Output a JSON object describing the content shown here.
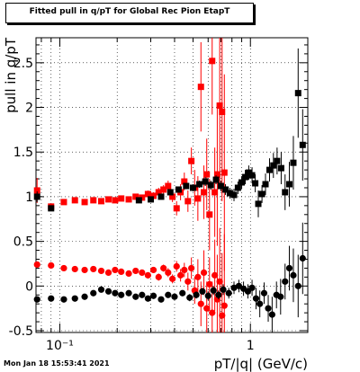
{
  "chart_data": {
    "type": "scatter",
    "title": "Fitted pull in q/pT for Global Rec Pion EtapT",
    "xlabel": "pT/|q| (GeV/c)",
    "ylabel": "pull in q/pT",
    "x_scale": "log",
    "xlim": [
      0.075,
      2.0
    ],
    "ylim": [
      -0.52,
      2.78
    ],
    "x_tick_labels": [
      {
        "value": 0.1,
        "label": "10⁻¹"
      },
      {
        "value": 1,
        "label": "1"
      }
    ],
    "y_ticks": [
      -0.5,
      0,
      0.5,
      1,
      1.5,
      2,
      2.5
    ],
    "series": [
      {
        "color": "#ff0000",
        "marker": "square",
        "points": [
          {
            "x": 0.076,
            "y": 1.07,
            "err": 0.14
          },
          {
            "x": 0.09,
            "y": 0.89,
            "err": 0.02
          },
          {
            "x": 0.105,
            "y": 0.94,
            "err": 0.02
          },
          {
            "x": 0.12,
            "y": 0.96,
            "err": 0.02
          },
          {
            "x": 0.135,
            "y": 0.94,
            "err": 0.02
          },
          {
            "x": 0.15,
            "y": 0.96,
            "err": 0.02
          },
          {
            "x": 0.165,
            "y": 0.95,
            "err": 0.02
          },
          {
            "x": 0.18,
            "y": 0.97,
            "err": 0.02
          },
          {
            "x": 0.195,
            "y": 0.96,
            "err": 0.02
          },
          {
            "x": 0.21,
            "y": 0.98,
            "err": 0.02
          },
          {
            "x": 0.23,
            "y": 0.97,
            "err": 0.03
          },
          {
            "x": 0.25,
            "y": 1.0,
            "err": 0.03
          },
          {
            "x": 0.27,
            "y": 0.99,
            "err": 0.03
          },
          {
            "x": 0.29,
            "y": 1.03,
            "err": 0.04
          },
          {
            "x": 0.31,
            "y": 1.01,
            "err": 0.04
          },
          {
            "x": 0.33,
            "y": 1.05,
            "err": 0.05
          },
          {
            "x": 0.35,
            "y": 1.08,
            "err": 0.05
          },
          {
            "x": 0.37,
            "y": 1.12,
            "err": 0.06
          },
          {
            "x": 0.39,
            "y": 1.0,
            "err": 0.06
          },
          {
            "x": 0.41,
            "y": 0.87,
            "err": 0.08
          },
          {
            "x": 0.43,
            "y": 1.05,
            "err": 0.09
          },
          {
            "x": 0.45,
            "y": 1.17,
            "err": 0.1
          },
          {
            "x": 0.47,
            "y": 0.95,
            "err": 0.12
          },
          {
            "x": 0.49,
            "y": 1.4,
            "err": 0.15
          },
          {
            "x": 0.51,
            "y": 1.1,
            "err": 0.2
          },
          {
            "x": 0.53,
            "y": 0.98,
            "err": 0.25
          },
          {
            "x": 0.55,
            "y": 2.23,
            "err": 0.5
          },
          {
            "x": 0.57,
            "y": 1.05,
            "err": 0.3
          },
          {
            "x": 0.59,
            "y": 1.25,
            "err": 0.4
          },
          {
            "x": 0.61,
            "y": 0.8,
            "err": 0.4
          },
          {
            "x": 0.63,
            "y": 2.52,
            "err": 0.6
          },
          {
            "x": 0.65,
            "y": 1.05,
            "err": 0.5
          },
          {
            "x": 0.67,
            "y": 1.25,
            "err": 0.8
          },
          {
            "x": 0.69,
            "y": 2.02,
            "err": 0.9
          },
          {
            "x": 0.71,
            "y": 1.95,
            "err": 1.0
          },
          {
            "x": 0.73,
            "y": 1.27,
            "err": 1.1
          }
        ]
      },
      {
        "color": "#000000",
        "marker": "square",
        "points": [
          {
            "x": 0.076,
            "y": 1.0,
            "err": 0.06
          },
          {
            "x": 0.09,
            "y": 0.87,
            "err": 0.02
          },
          {
            "x": 0.26,
            "y": 0.96,
            "err": 0.02
          },
          {
            "x": 0.3,
            "y": 0.97,
            "err": 0.02
          },
          {
            "x": 0.34,
            "y": 1.0,
            "err": 0.02
          },
          {
            "x": 0.38,
            "y": 1.05,
            "err": 0.03
          },
          {
            "x": 0.42,
            "y": 1.08,
            "err": 0.03
          },
          {
            "x": 0.46,
            "y": 1.12,
            "err": 0.03
          },
          {
            "x": 0.5,
            "y": 1.1,
            "err": 0.04
          },
          {
            "x": 0.54,
            "y": 1.14,
            "err": 0.04
          },
          {
            "x": 0.58,
            "y": 1.17,
            "err": 0.05
          },
          {
            "x": 0.62,
            "y": 1.13,
            "err": 0.05
          },
          {
            "x": 0.66,
            "y": 1.19,
            "err": 0.05
          },
          {
            "x": 0.7,
            "y": 1.12,
            "err": 0.06
          },
          {
            "x": 0.74,
            "y": 1.08,
            "err": 0.06
          },
          {
            "x": 0.78,
            "y": 1.04,
            "err": 0.06
          },
          {
            "x": 0.82,
            "y": 1.02,
            "err": 0.07
          },
          {
            "x": 0.86,
            "y": 1.1,
            "err": 0.07
          },
          {
            "x": 0.9,
            "y": 1.16,
            "err": 0.07
          },
          {
            "x": 0.94,
            "y": 1.22,
            "err": 0.08
          },
          {
            "x": 0.98,
            "y": 1.27,
            "err": 0.08
          },
          {
            "x": 1.02,
            "y": 1.24,
            "err": 0.09
          },
          {
            "x": 1.06,
            "y": 1.15,
            "err": 0.1
          },
          {
            "x": 1.1,
            "y": 0.92,
            "err": 0.15
          },
          {
            "x": 1.15,
            "y": 1.03,
            "err": 0.1
          },
          {
            "x": 1.2,
            "y": 1.14,
            "err": 0.12
          },
          {
            "x": 1.26,
            "y": 1.3,
            "err": 0.13
          },
          {
            "x": 1.32,
            "y": 1.35,
            "err": 0.14
          },
          {
            "x": 1.38,
            "y": 1.4,
            "err": 0.15
          },
          {
            "x": 1.45,
            "y": 1.32,
            "err": 0.18
          },
          {
            "x": 1.52,
            "y": 1.05,
            "err": 0.2
          },
          {
            "x": 1.6,
            "y": 1.14,
            "err": 0.25
          },
          {
            "x": 1.68,
            "y": 1.38,
            "err": 0.3
          },
          {
            "x": 1.78,
            "y": 2.16,
            "err": 0.5
          },
          {
            "x": 1.88,
            "y": 1.58,
            "err": 0.4
          }
        ]
      },
      {
        "color": "#ff0000",
        "marker": "circle",
        "points": [
          {
            "x": 0.076,
            "y": 0.24,
            "err": 0.01
          },
          {
            "x": 0.09,
            "y": 0.23,
            "err": 0.01
          },
          {
            "x": 0.105,
            "y": 0.2,
            "err": 0.01
          },
          {
            "x": 0.12,
            "y": 0.19,
            "err": 0.01
          },
          {
            "x": 0.135,
            "y": 0.18,
            "err": 0.01
          },
          {
            "x": 0.15,
            "y": 0.19,
            "err": 0.01
          },
          {
            "x": 0.165,
            "y": 0.17,
            "err": 0.01
          },
          {
            "x": 0.18,
            "y": 0.15,
            "err": 0.02
          },
          {
            "x": 0.195,
            "y": 0.18,
            "err": 0.02
          },
          {
            "x": 0.21,
            "y": 0.16,
            "err": 0.02
          },
          {
            "x": 0.23,
            "y": 0.14,
            "err": 0.02
          },
          {
            "x": 0.25,
            "y": 0.17,
            "err": 0.02
          },
          {
            "x": 0.27,
            "y": 0.15,
            "err": 0.03
          },
          {
            "x": 0.29,
            "y": 0.12,
            "err": 0.03
          },
          {
            "x": 0.31,
            "y": 0.18,
            "err": 0.03
          },
          {
            "x": 0.33,
            "y": 0.1,
            "err": 0.04
          },
          {
            "x": 0.35,
            "y": 0.2,
            "err": 0.04
          },
          {
            "x": 0.37,
            "y": 0.15,
            "err": 0.05
          },
          {
            "x": 0.39,
            "y": 0.08,
            "err": 0.05
          },
          {
            "x": 0.41,
            "y": 0.22,
            "err": 0.06
          },
          {
            "x": 0.43,
            "y": 0.12,
            "err": 0.07
          },
          {
            "x": 0.45,
            "y": 0.18,
            "err": 0.08
          },
          {
            "x": 0.47,
            "y": 0.05,
            "err": 0.1
          },
          {
            "x": 0.49,
            "y": 0.2,
            "err": 0.12
          },
          {
            "x": 0.51,
            "y": -0.05,
            "err": 0.15
          },
          {
            "x": 0.53,
            "y": 0.1,
            "err": 0.2
          },
          {
            "x": 0.55,
            "y": -0.2,
            "err": 0.25
          },
          {
            "x": 0.57,
            "y": 0.15,
            "err": 0.25
          },
          {
            "x": 0.59,
            "y": -0.25,
            "err": 0.3
          },
          {
            "x": 0.61,
            "y": 0.02,
            "err": 0.3
          },
          {
            "x": 0.63,
            "y": -0.3,
            "err": 0.35
          },
          {
            "x": 0.65,
            "y": 0.12,
            "err": 0.4
          },
          {
            "x": 0.67,
            "y": -0.15,
            "err": 0.5
          },
          {
            "x": 0.69,
            "y": 0.05,
            "err": 0.6
          },
          {
            "x": 0.71,
            "y": -0.33,
            "err": 0.7
          },
          {
            "x": 0.73,
            "y": -0.22,
            "err": 0.8
          }
        ]
      },
      {
        "color": "#000000",
        "marker": "circle",
        "points": [
          {
            "x": 0.076,
            "y": -0.15,
            "err": 0.01
          },
          {
            "x": 0.09,
            "y": -0.14,
            "err": 0.01
          },
          {
            "x": 0.105,
            "y": -0.15,
            "err": 0.01
          },
          {
            "x": 0.12,
            "y": -0.14,
            "err": 0.01
          },
          {
            "x": 0.135,
            "y": -0.12,
            "err": 0.01
          },
          {
            "x": 0.15,
            "y": -0.08,
            "err": 0.01
          },
          {
            "x": 0.165,
            "y": -0.04,
            "err": 0.01
          },
          {
            "x": 0.18,
            "y": -0.06,
            "err": 0.01
          },
          {
            "x": 0.195,
            "y": -0.08,
            "err": 0.01
          },
          {
            "x": 0.21,
            "y": -0.1,
            "err": 0.02
          },
          {
            "x": 0.23,
            "y": -0.08,
            "err": 0.02
          },
          {
            "x": 0.25,
            "y": -0.12,
            "err": 0.02
          },
          {
            "x": 0.27,
            "y": -0.1,
            "err": 0.02
          },
          {
            "x": 0.29,
            "y": -0.14,
            "err": 0.02
          },
          {
            "x": 0.31,
            "y": -0.11,
            "err": 0.02
          },
          {
            "x": 0.34,
            "y": -0.15,
            "err": 0.03
          },
          {
            "x": 0.37,
            "y": -0.1,
            "err": 0.03
          },
          {
            "x": 0.4,
            "y": -0.12,
            "err": 0.03
          },
          {
            "x": 0.44,
            "y": -0.08,
            "err": 0.03
          },
          {
            "x": 0.48,
            "y": -0.13,
            "err": 0.04
          },
          {
            "x": 0.52,
            "y": -0.1,
            "err": 0.04
          },
          {
            "x": 0.56,
            "y": -0.06,
            "err": 0.04
          },
          {
            "x": 0.6,
            "y": -0.11,
            "err": 0.05
          },
          {
            "x": 0.64,
            "y": -0.05,
            "err": 0.05
          },
          {
            "x": 0.68,
            "y": -0.1,
            "err": 0.05
          },
          {
            "x": 0.72,
            "y": -0.04,
            "err": 0.06
          },
          {
            "x": 0.77,
            "y": -0.08,
            "err": 0.06
          },
          {
            "x": 0.82,
            "y": -0.02,
            "err": 0.07
          },
          {
            "x": 0.87,
            "y": 0.0,
            "err": 0.07
          },
          {
            "x": 0.92,
            "y": -0.03,
            "err": 0.08
          },
          {
            "x": 0.97,
            "y": -0.06,
            "err": 0.08
          },
          {
            "x": 1.02,
            "y": -0.02,
            "err": 0.09
          },
          {
            "x": 1.07,
            "y": -0.14,
            "err": 0.12
          },
          {
            "x": 1.12,
            "y": -0.2,
            "err": 0.15
          },
          {
            "x": 1.18,
            "y": -0.08,
            "err": 0.12
          },
          {
            "x": 1.24,
            "y": -0.25,
            "err": 0.15
          },
          {
            "x": 1.3,
            "y": -0.32,
            "err": 0.2
          },
          {
            "x": 1.37,
            "y": -0.1,
            "err": 0.15
          },
          {
            "x": 1.44,
            "y": -0.12,
            "err": 0.2
          },
          {
            "x": 1.52,
            "y": 0.05,
            "err": 0.2
          },
          {
            "x": 1.6,
            "y": 0.2,
            "err": 0.25
          },
          {
            "x": 1.68,
            "y": 0.12,
            "err": 0.3
          },
          {
            "x": 1.78,
            "y": 0.0,
            "err": 0.35
          },
          {
            "x": 1.88,
            "y": 0.31,
            "err": 0.4
          }
        ]
      }
    ]
  },
  "footer": {
    "timestamp": "Mon Jan 18 15:53:41 2021"
  }
}
